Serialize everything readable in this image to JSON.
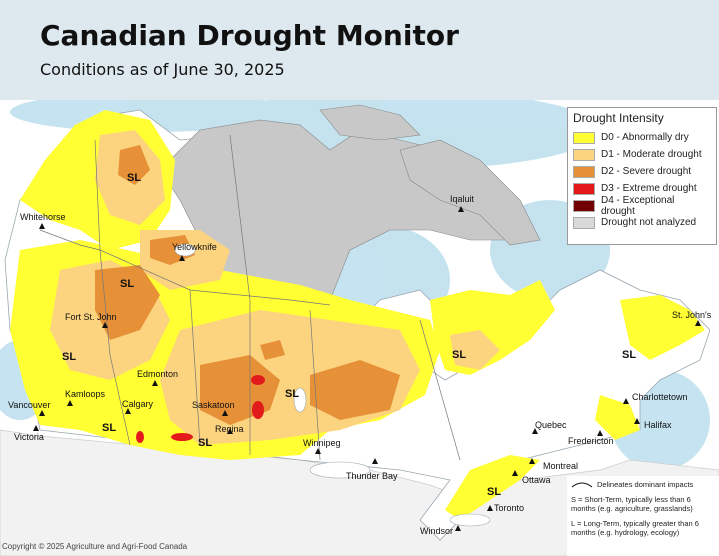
{
  "header": {
    "title": "Canadian Drought Monitor",
    "subtitle": "Conditions as of June 30, 2025"
  },
  "legend": {
    "title": "Drought Intensity",
    "items": [
      {
        "label": "D0 - Abnormally dry",
        "color": "#ffff33"
      },
      {
        "label": "D1 - Moderate drought",
        "color": "#fcd37f"
      },
      {
        "label": "D2 - Severe drought",
        "color": "#e69138"
      },
      {
        "label": "D3 - Extreme drought",
        "color": "#e31a1c"
      },
      {
        "label": "D4 - Exceptional drought",
        "color": "#730000"
      },
      {
        "label": "Drought not analyzed",
        "color": "#d9d9d9"
      }
    ]
  },
  "impacts": {
    "delineates": "Delineates dominant impacts",
    "short_term": "S = Short-Term, typically less than 6 months (e.g. agriculture, grasslands)",
    "long_term": "L = Long-Term, typically greater than 6 months (e.g. hydrology, ecology)"
  },
  "cities": [
    {
      "name": "Whitehorse"
    },
    {
      "name": "Yellowknife"
    },
    {
      "name": "Iqaluit"
    },
    {
      "name": "Fort St. John"
    },
    {
      "name": "Edmonton"
    },
    {
      "name": "Kamloops"
    },
    {
      "name": "Vancouver"
    },
    {
      "name": "Victoria"
    },
    {
      "name": "Calgary"
    },
    {
      "name": "Saskatoon"
    },
    {
      "name": "Regina"
    },
    {
      "name": "Winnipeg"
    },
    {
      "name": "Thunder Bay"
    },
    {
      "name": "Quebec"
    },
    {
      "name": "Montreal"
    },
    {
      "name": "Ottawa"
    },
    {
      "name": "Toronto"
    },
    {
      "name": "Windsor"
    },
    {
      "name": "Fredericton"
    },
    {
      "name": "Charlottetown"
    },
    {
      "name": "Halifax"
    },
    {
      "name": "St. John's"
    }
  ],
  "impact_label": "SL",
  "copyright": "Copyright © 2025 Agriculture and Agri-Food Canada"
}
